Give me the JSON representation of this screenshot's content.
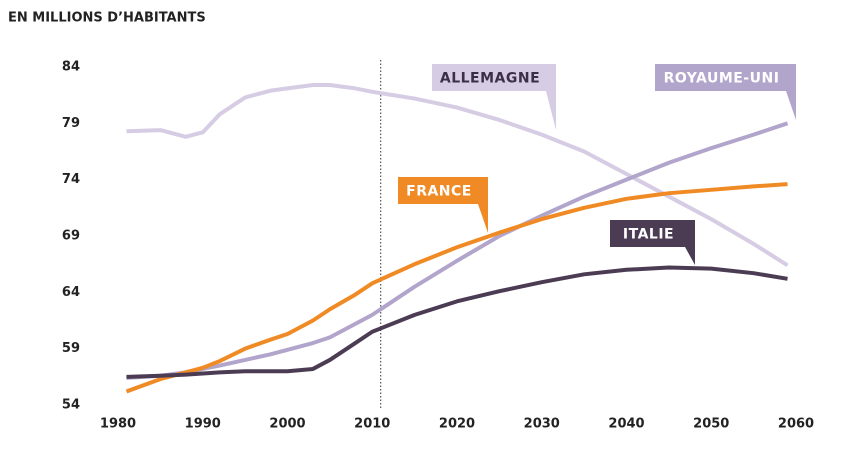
{
  "chart_data": {
    "type": "line",
    "title": "EN MILLIONS D’HABITANTS",
    "x": [
      1981,
      1985,
      1988,
      1990,
      1992,
      1995,
      1998,
      2000,
      2003,
      2005,
      2008,
      2010,
      2015,
      2020,
      2025,
      2030,
      2035,
      2040,
      2045,
      2050,
      2055,
      2059
    ],
    "series": [
      {
        "name": "ALLEMAGNE",
        "color": "#d6cce4",
        "values": [
          78.3,
          78.4,
          77.8,
          78.2,
          79.8,
          81.3,
          81.9,
          82.1,
          82.4,
          82.4,
          82.1,
          81.8,
          81.2,
          80.4,
          79.3,
          78,
          76.5,
          74.5,
          72.5,
          70.5,
          68.3,
          66.4
        ]
      },
      {
        "name": "ROYAUME-UNI",
        "color": "#b2a5cb",
        "values": [
          56.4,
          56.6,
          56.9,
          57.2,
          57.5,
          58,
          58.5,
          58.9,
          59.5,
          60,
          61.2,
          62,
          64.5,
          66.8,
          69,
          70.8,
          72.5,
          74,
          75.5,
          76.8,
          78,
          79
        ]
      },
      {
        "name": "FRANCE",
        "color": "#f08a24",
        "values": [
          55.2,
          56.3,
          56.9,
          57.3,
          57.9,
          59,
          59.8,
          60.3,
          61.5,
          62.5,
          63.8,
          64.8,
          66.5,
          68,
          69.3,
          70.5,
          71.5,
          72.3,
          72.8,
          73.1,
          73.4,
          73.6
        ]
      },
      {
        "name": "ITALIE",
        "color": "#4b3c54",
        "values": [
          56.5,
          56.6,
          56.7,
          56.8,
          56.9,
          57,
          57,
          57,
          57.2,
          58,
          59.5,
          60.5,
          62,
          63.2,
          64.1,
          64.9,
          65.6,
          66,
          66.2,
          66.1,
          65.7,
          65.2
        ]
      }
    ],
    "xlim": [
      1980,
      2060
    ],
    "xticks": [
      1980,
      1990,
      2000,
      2010,
      2020,
      2030,
      2040,
      2050,
      2060
    ],
    "ylim": [
      54,
      84
    ],
    "yticks": [
      54,
      59,
      64,
      69,
      74,
      79,
      84
    ],
    "vline": 2011
  }
}
